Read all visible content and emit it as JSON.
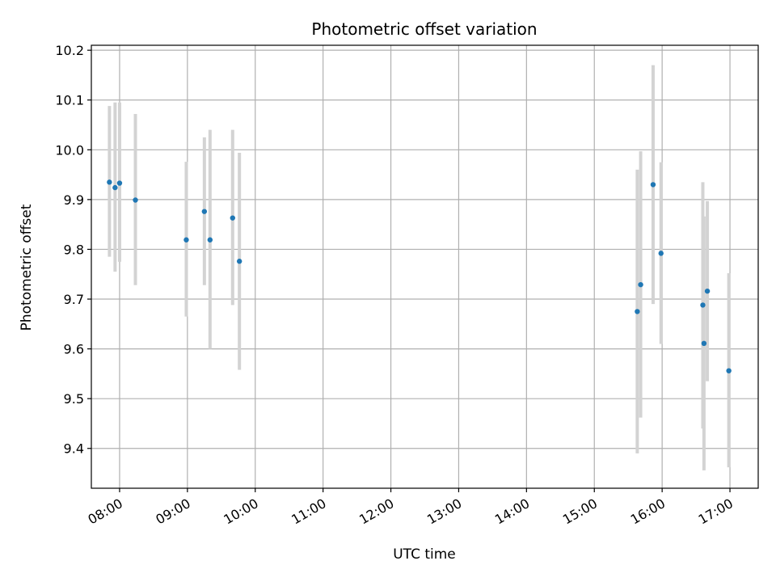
{
  "chart_data": {
    "type": "scatter",
    "title": "Photometric offset variation",
    "xlabel": "UTC time",
    "ylabel": "Photometric offset",
    "x_tick_labels": [
      "08:00",
      "09:00",
      "10:00",
      "11:00",
      "12:00",
      "13:00",
      "14:00",
      "15:00",
      "16:00",
      "17:00"
    ],
    "y_ticks": [
      9.4,
      9.5,
      9.6,
      9.7,
      9.8,
      9.9,
      10.0,
      10.1,
      10.2
    ],
    "y_tick_labels": [
      "9.4",
      "9.5",
      "9.6",
      "9.7",
      "9.8",
      "9.9",
      "10.0",
      "10.1",
      "10.2"
    ],
    "xlim": [
      "07:35",
      "17:25"
    ],
    "ylim": [
      9.32,
      10.21
    ],
    "grid": true,
    "point_color": "#1f77b4",
    "errorbar_color": "#d3d3d3",
    "points": [
      {
        "time": "07:51",
        "y": 9.935,
        "low": 9.785,
        "high": 10.088
      },
      {
        "time": "07:56",
        "y": 9.924,
        "low": 9.755,
        "high": 10.095
      },
      {
        "time": "08:00",
        "y": 9.933,
        "low": 9.775,
        "high": 10.095
      },
      {
        "time": "08:14",
        "y": 9.899,
        "low": 9.728,
        "high": 10.072
      },
      {
        "time": "08:59",
        "y": 9.819,
        "low": 9.665,
        "high": 9.976
      },
      {
        "time": "09:15",
        "y": 9.876,
        "low": 9.728,
        "high": 10.025
      },
      {
        "time": "09:20",
        "y": 9.819,
        "low": 9.6,
        "high": 10.04
      },
      {
        "time": "09:40",
        "y": 9.863,
        "low": 9.688,
        "high": 10.04
      },
      {
        "time": "09:46",
        "y": 9.776,
        "low": 9.558,
        "high": 9.994
      },
      {
        "time": "15:38",
        "y": 9.675,
        "low": 9.39,
        "high": 9.96
      },
      {
        "time": "15:41",
        "y": 9.729,
        "low": 9.462,
        "high": 9.997
      },
      {
        "time": "15:52",
        "y": 9.93,
        "low": 9.69,
        "high": 10.17
      },
      {
        "time": "15:59",
        "y": 9.792,
        "low": 9.61,
        "high": 9.975
      },
      {
        "time": "16:36",
        "y": 9.688,
        "low": 9.44,
        "high": 9.935
      },
      {
        "time": "16:37",
        "y": 9.611,
        "low": 9.356,
        "high": 9.866
      },
      {
        "time": "16:40",
        "y": 9.716,
        "low": 9.535,
        "high": 9.897
      },
      {
        "time": "16:59",
        "y": 9.556,
        "low": 9.362,
        "high": 9.752
      }
    ]
  }
}
